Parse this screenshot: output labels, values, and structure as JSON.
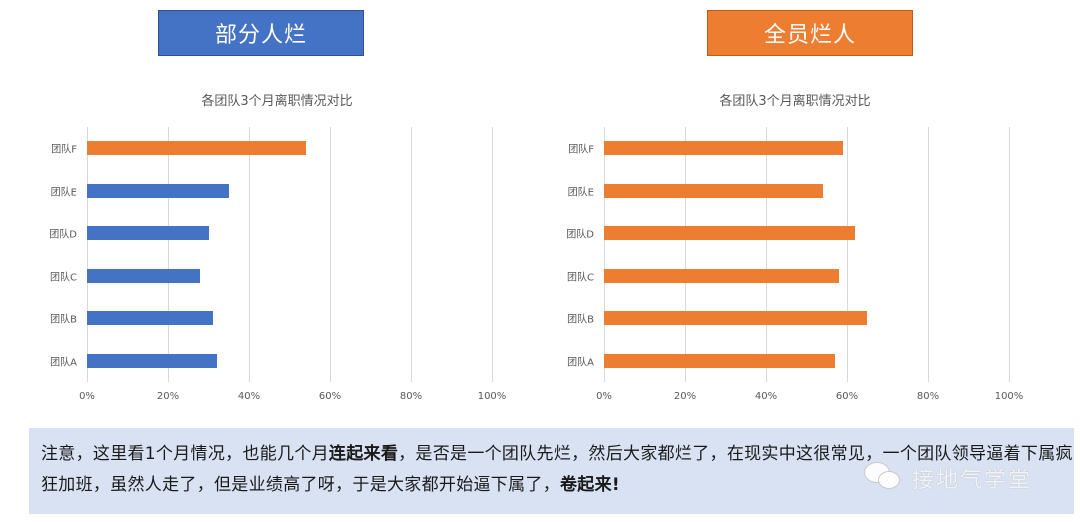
{
  "banners": {
    "left": {
      "label": "部分人烂",
      "color": "#4472C4"
    },
    "right": {
      "label": "全员烂人",
      "color": "#ED7D31"
    }
  },
  "chart_data": [
    {
      "type": "bar",
      "orientation": "horizontal",
      "title": "各团队3个月离职情况对比",
      "categories": [
        "团队A",
        "团队B",
        "团队C",
        "团队D",
        "团队E",
        "团队F"
      ],
      "values": [
        32,
        31,
        28,
        30,
        35,
        54
      ],
      "unit": "%",
      "bar_colors": [
        "#4472C4",
        "#4472C4",
        "#4472C4",
        "#4472C4",
        "#4472C4",
        "#ED7D31"
      ],
      "xlabel": "",
      "ylabel": "",
      "xlim": [
        0,
        100
      ],
      "xticks": [
        "0%",
        "20%",
        "40%",
        "60%",
        "80%",
        "100%"
      ],
      "grid": true,
      "legend": null
    },
    {
      "type": "bar",
      "orientation": "horizontal",
      "title": "各团队3个月离职情况对比",
      "categories": [
        "团队A",
        "团队B",
        "团队C",
        "团队D",
        "团队E",
        "团队F"
      ],
      "values": [
        57,
        65,
        58,
        62,
        54,
        59
      ],
      "unit": "%",
      "bar_colors": [
        "#ED7D31",
        "#ED7D31",
        "#ED7D31",
        "#ED7D31",
        "#ED7D31",
        "#ED7D31"
      ],
      "xlabel": "",
      "ylabel": "",
      "xlim": [
        0,
        100
      ],
      "xticks": [
        "0%",
        "20%",
        "40%",
        "60%",
        "80%",
        "100%"
      ],
      "grid": true,
      "legend": null
    }
  ],
  "note": {
    "seg1": "注意，这里看1个月情况，也能几个月",
    "bold1": "连起来看",
    "seg2": "，是否是一个团队先烂，然后大家都烂了，在现实中这很常见，一个团队领导逼着下属疯狂加班，虽然人走了，但是业绩高了呀，于是大家都开始逼下属了，",
    "bold2": "卷起来!"
  },
  "watermark": {
    "icon": "wechat-icon",
    "text": "接地气学堂"
  }
}
